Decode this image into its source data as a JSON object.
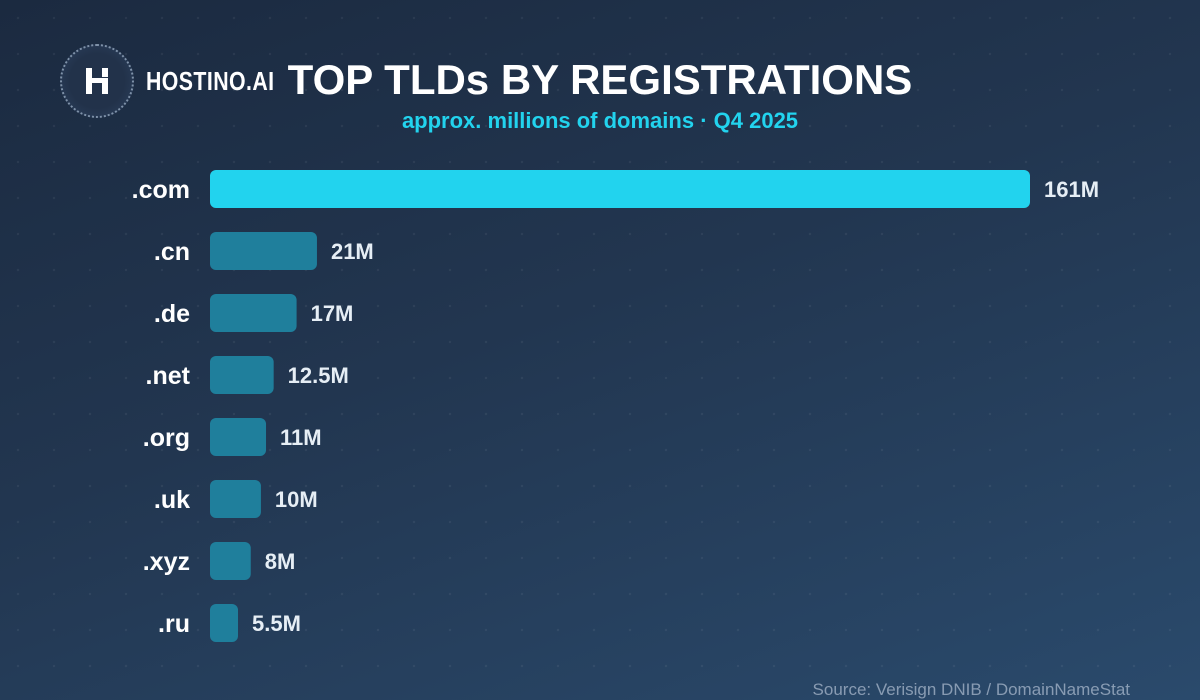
{
  "brand": {
    "name": "HOSTINO.AI",
    "logo_icon": "h-monogram-icon"
  },
  "header": {
    "title": "TOP TLDs BY REGISTRATIONS",
    "subtitle": "approx. millions of domains · Q4 2025"
  },
  "footer": {
    "source": "Source: Verisign DNIB / DomainNameStat"
  },
  "colors": {
    "highlight_bar": "#22d3ee",
    "bar": "#1f7f9c",
    "label": "#ffffff",
    "value_label": "#e6eef5",
    "accent": "#22d3ee"
  },
  "chart_data": {
    "type": "bar",
    "orientation": "horizontal",
    "categories": [
      ".com",
      ".cn",
      ".de",
      ".net",
      ".org",
      ".uk",
      ".xyz",
      ".ru"
    ],
    "values": [
      161,
      21,
      17,
      12.5,
      11,
      10,
      8,
      5.5
    ],
    "value_labels": [
      "161M",
      "21M",
      "17M",
      "12.5M",
      "11M",
      "10M",
      "8M",
      "5.5M"
    ],
    "highlight_index": 0,
    "xlim": [
      0,
      161
    ],
    "grid": false,
    "legend": "none"
  }
}
